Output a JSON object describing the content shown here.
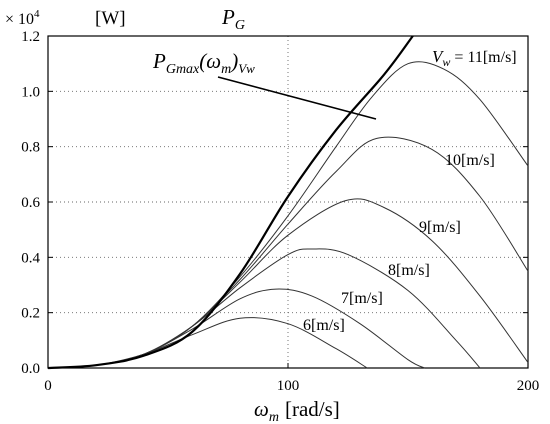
{
  "chart_data": {
    "type": "line",
    "xlim": [
      0,
      200
    ],
    "ylim": [
      0,
      1.2
    ],
    "x_ticks": [
      0,
      100,
      200
    ],
    "y_ticks": [
      0.0,
      0.2,
      0.4,
      0.6,
      0.8,
      1.0,
      1.2
    ],
    "x_tick_labels": [
      "0",
      "100",
      "200"
    ],
    "y_tick_labels": [
      "0.0",
      "0.2",
      "0.4",
      "0.6",
      "0.8",
      "1.0",
      "1.2"
    ],
    "grid": "dotted",
    "y_multiplier": "× 10",
    "y_multiplier_exp": "4",
    "y_unit": "[W]",
    "y_symbol": "P",
    "y_symbol_sub": "G",
    "x_symbol": "ω",
    "x_symbol_sub": "m",
    "x_unit": "[rad/s]",
    "series": [
      {
        "name": "6[m/s]",
        "x": [
          0,
          20,
          40,
          60,
          80,
          100,
          120,
          133
        ],
        "y": [
          0,
          0.01,
          0.05,
          0.12,
          0.18,
          0.16,
          0.07,
          0
        ]
      },
      {
        "name": "7[m/s]",
        "x": [
          0,
          20,
          40,
          60,
          80,
          95,
          110,
          130,
          150,
          157
        ],
        "y": [
          0,
          0.01,
          0.05,
          0.14,
          0.25,
          0.285,
          0.26,
          0.16,
          0.03,
          0
        ]
      },
      {
        "name": "8[m/s]",
        "x": [
          0,
          20,
          40,
          60,
          80,
          100,
          110,
          125,
          150,
          170,
          180
        ],
        "y": [
          0,
          0.01,
          0.05,
          0.15,
          0.29,
          0.41,
          0.43,
          0.41,
          0.28,
          0.1,
          0
        ]
      },
      {
        "name": "9[m/s]",
        "x": [
          0,
          20,
          40,
          60,
          80,
          100,
          124,
          140,
          160,
          180,
          200
        ],
        "y": [
          0,
          0.01,
          0.05,
          0.15,
          0.31,
          0.48,
          0.605,
          0.58,
          0.46,
          0.26,
          0.02
        ]
      },
      {
        "name": "10[m/s]",
        "x": [
          0,
          20,
          40,
          60,
          80,
          100,
          120,
          137,
          160,
          180,
          200
        ],
        "y": [
          0,
          0.01,
          0.05,
          0.15,
          0.32,
          0.52,
          0.71,
          0.83,
          0.79,
          0.62,
          0.35
        ]
      },
      {
        "name": "11[m/s]",
        "x": [
          0,
          20,
          40,
          60,
          80,
          100,
          120,
          135,
          150,
          165,
          180,
          200
        ],
        "y": [
          0,
          0.01,
          0.05,
          0.15,
          0.33,
          0.55,
          0.8,
          0.98,
          1.1,
          1.08,
          0.97,
          0.73
        ]
      }
    ],
    "max_curve": {
      "x": [
        0,
        20,
        40,
        60,
        80,
        100,
        120,
        140,
        152
      ],
      "y": [
        0,
        0.01,
        0.045,
        0.13,
        0.34,
        0.62,
        0.86,
        1.06,
        1.2
      ]
    },
    "v_label_prefix": "V",
    "v_label_sub": "w",
    "v_label_eq": " = ",
    "v_first_label": "11[m/s]",
    "curve_labels": [
      "10[m/s]",
      "9[m/s]",
      "8[m/s]",
      "7[m/s]",
      "6[m/s]"
    ],
    "max_label_main": "P",
    "max_label_sub": "Gmax",
    "max_label_arg": "(ω",
    "max_label_arg_sub": "m",
    "max_label_close": ")",
    "max_label_cond": "Vw"
  }
}
